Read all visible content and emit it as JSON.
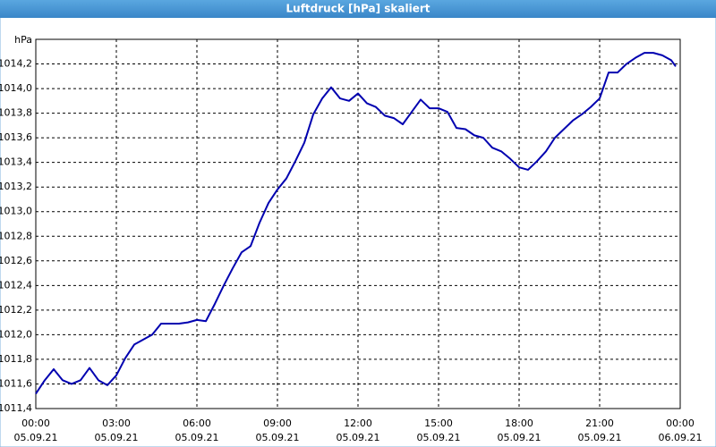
{
  "chart_data": {
    "type": "line",
    "title": "Luftdruck [hPa] skaliert",
    "y_label": "hPa",
    "x": [
      0,
      20,
      40,
      60,
      80,
      100,
      120,
      140,
      160,
      180,
      200,
      220,
      240,
      260,
      280,
      300,
      320,
      340,
      360,
      380,
      400,
      420,
      440,
      460,
      480,
      500,
      520,
      540,
      560,
      580,
      600,
      620,
      640,
      660,
      680,
      700,
      720,
      740,
      760,
      780,
      800,
      820,
      840,
      860,
      880,
      900,
      920,
      940,
      960,
      980,
      1000,
      1020,
      1040,
      1060,
      1080,
      1100,
      1120,
      1140,
      1160,
      1180,
      1200,
      1220,
      1240,
      1260,
      1280,
      1300,
      1320,
      1340,
      1360,
      1380,
      1400,
      1420,
      1430
    ],
    "values": [
      1011.52,
      1011.63,
      1011.72,
      1011.63,
      1011.6,
      1011.63,
      1011.73,
      1011.63,
      1011.59,
      1011.67,
      1011.81,
      1011.92,
      1011.96,
      1012.0,
      1012.09,
      1012.09,
      1012.09,
      1012.1,
      1012.12,
      1012.11,
      1012.25,
      1012.4,
      1012.54,
      1012.67,
      1012.72,
      1012.91,
      1013.07,
      1013.18,
      1013.27,
      1013.41,
      1013.56,
      1013.79,
      1013.92,
      1014.01,
      1013.92,
      1013.9,
      1013.96,
      1013.88,
      1013.85,
      1013.78,
      1013.76,
      1013.71,
      1013.81,
      1013.91,
      1013.84,
      1013.84,
      1013.81,
      1013.68,
      1013.67,
      1013.62,
      1013.6,
      1013.52,
      1013.49,
      1013.43,
      1013.36,
      1013.34,
      1013.41,
      1013.49,
      1013.6,
      1013.67,
      1013.74,
      1013.79,
      1013.85,
      1013.92,
      1014.13,
      1014.13,
      1014.2,
      1014.25,
      1014.29,
      1014.29,
      1014.27,
      1014.23,
      1014.18
    ],
    "color": "#0000b0",
    "xlim": [
      0,
      1440
    ],
    "xticks": [
      {
        "value": 0,
        "label": "00:00"
      },
      {
        "value": 180,
        "label": "03:00"
      },
      {
        "value": 360,
        "label": "06:00"
      },
      {
        "value": 540,
        "label": "09:00"
      },
      {
        "value": 720,
        "label": "12:00"
      },
      {
        "value": 900,
        "label": "15:00"
      },
      {
        "value": 1080,
        "label": "18:00"
      },
      {
        "value": 1260,
        "label": "21:00"
      },
      {
        "value": 1440,
        "label": "00:00"
      }
    ],
    "xtick_dates": [
      "05.09.21",
      "05.09.21",
      "05.09.21",
      "05.09.21",
      "05.09.21",
      "05.09.21",
      "05.09.21",
      "05.09.21",
      "06.09.21"
    ],
    "ylim": [
      1011.4,
      1014.4
    ],
    "yticks": [
      {
        "value": 1011.4,
        "label": "1011,4"
      },
      {
        "value": 1011.6,
        "label": "1011,6"
      },
      {
        "value": 1011.8,
        "label": "1011,8"
      },
      {
        "value": 1012.0,
        "label": "1012,0"
      },
      {
        "value": 1012.2,
        "label": "1012,2"
      },
      {
        "value": 1012.4,
        "label": "1012,4"
      },
      {
        "value": 1012.6,
        "label": "1012,6"
      },
      {
        "value": 1012.8,
        "label": "1012,8"
      },
      {
        "value": 1013.0,
        "label": "1013,0"
      },
      {
        "value": 1013.2,
        "label": "1013,2"
      },
      {
        "value": 1013.4,
        "label": "1013,4"
      },
      {
        "value": 1013.6,
        "label": "1013,6"
      },
      {
        "value": 1013.8,
        "label": "1013,8"
      },
      {
        "value": 1014.0,
        "label": "1014,0"
      },
      {
        "value": 1014.2,
        "label": "1014,2"
      }
    ],
    "grid": true
  }
}
